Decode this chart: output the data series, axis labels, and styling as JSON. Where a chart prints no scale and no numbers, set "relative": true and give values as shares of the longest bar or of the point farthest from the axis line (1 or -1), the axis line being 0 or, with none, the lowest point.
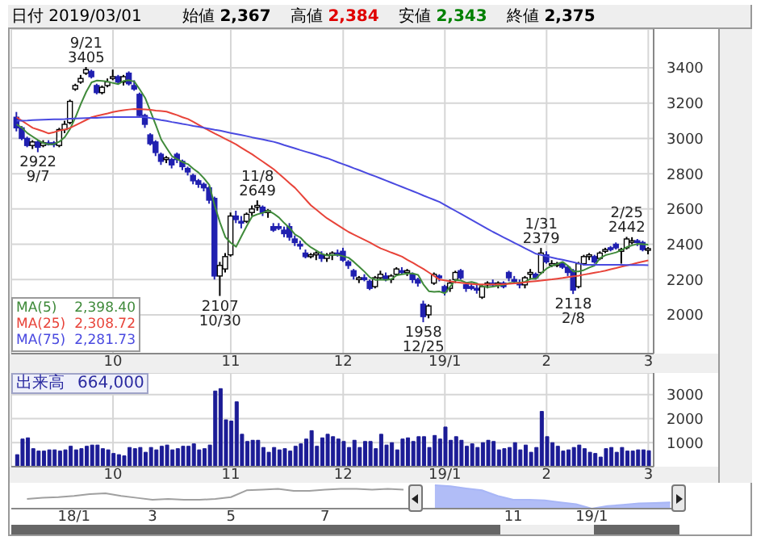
{
  "chart_data": [
    {
      "type": "candlestick",
      "title": "日付 2019/03/01",
      "annotations": [
        "始値 2,367",
        "高値 2,384",
        "安値 2,343",
        "終値 2,375",
        {
          "text": "9/21 3405",
          "y": 3405
        },
        {
          "text": "2922 9/7",
          "y": 2922
        },
        {
          "text": "11/8 2649",
          "y": 2649
        },
        {
          "text": "2107 10/30",
          "y": 2107
        },
        {
          "text": "1958 12/25",
          "y": 1958
        },
        {
          "text": "1/31 2379",
          "y": 2379
        },
        {
          "text": "2118 2/8",
          "y": 2118
        },
        {
          "text": "2/25 2442",
          "y": 2442
        }
      ],
      "categories": [
        null,
        null,
        null,
        null,
        null,
        null,
        null,
        null,
        null,
        null,
        null,
        null,
        null,
        null,
        null,
        null,
        null,
        null,
        "10",
        null,
        null,
        null,
        null,
        null,
        null,
        null,
        null,
        null,
        null,
        null,
        null,
        null,
        null,
        null,
        null,
        null,
        null,
        null,
        null,
        null,
        "11",
        null,
        null,
        null,
        null,
        null,
        null,
        null,
        null,
        null,
        null,
        null,
        null,
        null,
        null,
        null,
        null,
        null,
        null,
        null,
        null,
        "12",
        null,
        null,
        null,
        null,
        null,
        null,
        null,
        null,
        null,
        null,
        null,
        null,
        null,
        null,
        null,
        null,
        null,
        null,
        "19/1",
        null,
        null,
        null,
        null,
        null,
        null,
        null,
        null,
        null,
        null,
        null,
        null,
        null,
        null,
        null,
        null,
        null,
        null,
        "2",
        null,
        null,
        null,
        null,
        null,
        null,
        null,
        null,
        null,
        null,
        null,
        null,
        null,
        null,
        null,
        null,
        null,
        null,
        "3"
      ],
      "ohlc": [
        [
          3120,
          3150,
          3040,
          3060
        ],
        [
          3060,
          3070,
          2990,
          3000
        ],
        [
          3000,
          3010,
          2950,
          2960
        ],
        [
          2960,
          2990,
          2940,
          2980
        ],
        [
          2980,
          2990,
          2922,
          2950
        ],
        [
          2960,
          2990,
          2950,
          2975
        ],
        [
          2975,
          2990,
          2960,
          2970
        ],
        [
          2975,
          2985,
          2950,
          2965
        ],
        [
          2960,
          3060,
          2950,
          3050
        ],
        [
          3050,
          3100,
          3030,
          3080
        ],
        [
          3090,
          3220,
          3080,
          3210
        ],
        [
          3280,
          3310,
          3270,
          3300
        ],
        [
          3320,
          3360,
          3310,
          3340
        ],
        [
          3370,
          3405,
          3360,
          3390
        ],
        [
          3380,
          3390,
          3340,
          3350
        ],
        [
          3300,
          3310,
          3250,
          3260
        ],
        [
          3260,
          3300,
          3250,
          3290
        ],
        [
          3300,
          3340,
          3290,
          3320
        ],
        [
          3340,
          3390,
          3330,
          3350
        ],
        [
          3350,
          3360,
          3310,
          3320
        ],
        [
          3320,
          3360,
          3300,
          3350
        ],
        [
          3370,
          3380,
          3300,
          3310
        ],
        [
          3300,
          3330,
          3270,
          3280
        ],
        [
          3250,
          3260,
          3120,
          3130
        ],
        [
          3130,
          3140,
          3060,
          3080
        ],
        [
          3020,
          3030,
          2960,
          2970
        ],
        [
          2980,
          2990,
          2900,
          2920
        ],
        [
          2910,
          2920,
          2850,
          2870
        ],
        [
          2880,
          2900,
          2860,
          2890
        ],
        [
          2880,
          2890,
          2830,
          2850
        ],
        [
          2910,
          2920,
          2860,
          2880
        ],
        [
          2870,
          2880,
          2820,
          2840
        ],
        [
          2830,
          2840,
          2790,
          2810
        ],
        [
          2790,
          2800,
          2740,
          2760
        ],
        [
          2760,
          2770,
          2720,
          2740
        ],
        [
          2740,
          2750,
          2700,
          2720
        ],
        [
          2720,
          2730,
          2630,
          2650
        ],
        [
          2660,
          2670,
          2200,
          2220
        ],
        [
          2220,
          2300,
          2107,
          2280
        ],
        [
          2260,
          2350,
          2240,
          2330
        ],
        [
          2340,
          2580,
          2330,
          2560
        ],
        [
          2560,
          2590,
          2520,
          2540
        ],
        [
          2530,
          2560,
          2490,
          2520
        ],
        [
          2530,
          2580,
          2520,
          2570
        ],
        [
          2580,
          2620,
          2560,
          2600
        ],
        [
          2610,
          2649,
          2590,
          2620
        ],
        [
          2610,
          2620,
          2560,
          2580
        ],
        [
          2580,
          2600,
          2550,
          2590
        ],
        [
          2500,
          2520,
          2470,
          2480
        ],
        [
          2500,
          2520,
          2480,
          2490
        ],
        [
          2480,
          2500,
          2440,
          2460
        ],
        [
          2500,
          2520,
          2420,
          2440
        ],
        [
          2430,
          2450,
          2390,
          2410
        ],
        [
          2400,
          2420,
          2370,
          2390
        ],
        [
          2350,
          2370,
          2320,
          2330
        ],
        [
          2330,
          2350,
          2320,
          2340
        ],
        [
          2340,
          2360,
          2310,
          2350
        ],
        [
          2340,
          2360,
          2300,
          2320
        ],
        [
          2320,
          2350,
          2300,
          2340
        ],
        [
          2340,
          2360,
          2310,
          2350
        ],
        [
          2350,
          2370,
          2330,
          2340
        ],
        [
          2360,
          2380,
          2300,
          2310
        ],
        [
          2300,
          2310,
          2260,
          2280
        ],
        [
          2250,
          2260,
          2200,
          2220
        ],
        [
          2200,
          2220,
          2180,
          2210
        ],
        [
          2210,
          2230,
          2190,
          2200
        ],
        [
          2190,
          2200,
          2140,
          2150
        ],
        [
          2160,
          2220,
          2150,
          2210
        ],
        [
          2210,
          2250,
          2200,
          2230
        ],
        [
          2220,
          2240,
          2190,
          2200
        ],
        [
          2200,
          2230,
          2180,
          2220
        ],
        [
          2230,
          2270,
          2220,
          2260
        ],
        [
          2250,
          2270,
          2230,
          2240
        ],
        [
          2240,
          2260,
          2220,
          2250
        ],
        [
          2230,
          2240,
          2180,
          2200
        ],
        [
          2200,
          2210,
          2160,
          2180
        ],
        [
          2060,
          2080,
          1958,
          1990
        ],
        [
          2000,
          2060,
          1980,
          2050
        ],
        [
          2180,
          2240,
          2170,
          2230
        ],
        [
          2220,
          2230,
          2190,
          2210
        ],
        [
          2160,
          2170,
          2110,
          2130
        ],
        [
          2150,
          2200,
          2130,
          2180
        ],
        [
          2200,
          2250,
          2180,
          2240
        ],
        [
          2250,
          2260,
          2200,
          2210
        ],
        [
          2170,
          2180,
          2130,
          2150
        ],
        [
          2160,
          2180,
          2140,
          2150
        ],
        [
          2150,
          2170,
          2120,
          2140
        ],
        [
          2100,
          2170,
          2090,
          2160
        ],
        [
          2170,
          2190,
          2150,
          2180
        ],
        [
          2180,
          2200,
          2160,
          2170
        ],
        [
          2170,
          2190,
          2150,
          2180
        ],
        [
          2180,
          2190,
          2150,
          2160
        ],
        [
          2240,
          2250,
          2190,
          2210
        ],
        [
          2200,
          2220,
          2180,
          2190
        ],
        [
          2180,
          2200,
          2150,
          2170
        ],
        [
          2170,
          2220,
          2150,
          2210
        ],
        [
          2230,
          2260,
          2200,
          2240
        ],
        [
          2230,
          2240,
          2200,
          2210
        ],
        [
          2240,
          2379,
          2230,
          2350
        ],
        [
          2340,
          2360,
          2290,
          2300
        ],
        [
          2290,
          2310,
          2270,
          2290
        ],
        [
          2280,
          2300,
          2270,
          2290
        ],
        [
          2290,
          2300,
          2260,
          2270
        ],
        [
          2270,
          2280,
          2220,
          2240
        ],
        [
          2250,
          2260,
          2118,
          2140
        ],
        [
          2160,
          2300,
          2150,
          2290
        ],
        [
          2290,
          2340,
          2280,
          2330
        ],
        [
          2330,
          2350,
          2310,
          2340
        ],
        [
          2330,
          2340,
          2290,
          2300
        ],
        [
          2320,
          2360,
          2310,
          2350
        ],
        [
          2360,
          2380,
          2350,
          2370
        ],
        [
          2380,
          2390,
          2360,
          2370
        ],
        [
          2400,
          2410,
          2370,
          2380
        ],
        [
          2360,
          2380,
          2290,
          2370
        ],
        [
          2380,
          2442,
          2370,
          2430
        ],
        [
          2420,
          2440,
          2400,
          2420
        ],
        [
          2420,
          2430,
          2390,
          2410
        ],
        [
          2410,
          2420,
          2360,
          2370
        ],
        [
          2367,
          2384,
          2343,
          2375
        ]
      ],
      "colors": [
        "#2020b0",
        "#2020b0",
        "#2020b0",
        "#ffffff",
        "#2020b0",
        "#ffffff",
        "#2020b0",
        "#2020b0",
        "#ffffff",
        "#ffffff",
        "#ffffff",
        "#ffffff",
        "#ffffff",
        "#ffffff",
        "#2020b0",
        "#2020b0",
        "#ffffff",
        "#ffffff",
        "#ffffff",
        "#2020b0",
        "#ffffff",
        "#2020b0",
        "#2020b0",
        "#2020b0",
        "#2020b0",
        "#2020b0",
        "#2020b0",
        "#2020b0",
        "#ffffff",
        "#2020b0",
        "#2020b0",
        "#2020b0",
        "#2020b0",
        "#2020b0",
        "#2020b0",
        "#2020b0",
        "#2020b0",
        "#2020b0",
        "#ffffff",
        "#ffffff",
        "#ffffff",
        "#2020b0",
        "#2020b0",
        "#ffffff",
        "#ffffff",
        "#ffffff",
        "#2020b0",
        "#ffffff",
        "#2020b0",
        "#2020b0",
        "#2020b0",
        "#2020b0",
        "#2020b0",
        "#2020b0",
        "#2020b0",
        "#ffffff",
        "#ffffff",
        "#2020b0",
        "#ffffff",
        "#ffffff",
        "#2020b0",
        "#2020b0",
        "#2020b0",
        "#2020b0",
        "#ffffff",
        "#2020b0",
        "#2020b0",
        "#ffffff",
        "#ffffff",
        "#2020b0",
        "#ffffff",
        "#ffffff",
        "#2020b0",
        "#ffffff",
        "#2020b0",
        "#2020b0",
        "#2020b0",
        "#ffffff",
        "#ffffff",
        "#2020b0",
        "#2020b0",
        "#ffffff",
        "#ffffff",
        "#2020b0",
        "#2020b0",
        "#2020b0",
        "#2020b0",
        "#ffffff",
        "#ffffff",
        "#2020b0",
        "#ffffff",
        "#2020b0",
        "#2020b0",
        "#2020b0",
        "#2020b0",
        "#ffffff",
        "#ffffff",
        "#2020b0",
        "#ffffff",
        "#2020b0",
        "#ffffff",
        "#ffffff",
        "#2020b0",
        "#2020b0",
        "#2020b0",
        "#ffffff",
        "#ffffff",
        "#ffffff",
        "#2020b0",
        "#ffffff",
        "#ffffff",
        "#2020b0",
        "#2020b0",
        "#ffffff",
        "#ffffff",
        "#ffffff",
        "#2020b0",
        "#2020b0",
        "#ffffff"
      ],
      "series": [
        {
          "type": "line",
          "name": "MA(5) 2,398.40",
          "color": "#3f8a3a",
          "values": [
            3080,
            3060,
            3030,
            3010,
            2990,
            2973,
            2967,
            2968,
            2982,
            3008,
            3055,
            3121,
            3196,
            3264,
            3318,
            3328,
            3326,
            3322,
            3314,
            3308,
            3326,
            3330,
            3322,
            3278,
            3230,
            3154,
            3076,
            2994,
            2946,
            2900,
            2882,
            2866,
            2854,
            2828,
            2806,
            2774,
            2736,
            2618,
            2522,
            2440,
            2408,
            2386,
            2446,
            2504,
            2558,
            2570,
            2578,
            2592,
            2574,
            2552,
            2520,
            2492,
            2456,
            2438,
            2406,
            2382,
            2364,
            2346,
            2336,
            2340,
            2340,
            2332,
            2324,
            2300,
            2272,
            2244,
            2212,
            2198,
            2200,
            2198,
            2202,
            2224,
            2230,
            2234,
            2234,
            2226,
            2172,
            2134,
            2130,
            2132,
            2122,
            2160,
            2198,
            2194,
            2182,
            2186,
            2178,
            2162,
            2156,
            2160,
            2166,
            2170,
            2180,
            2182,
            2182,
            2188,
            2204,
            2204,
            2236,
            2262,
            2278,
            2288,
            2300,
            2278,
            2246,
            2246,
            2254,
            2268,
            2280,
            2322,
            2338,
            2346,
            2354,
            2368,
            2384,
            2394,
            2402,
            2400,
            2398.4
          ]
        },
        {
          "type": "line",
          "name": "MA(25) 2,308.72",
          "color": "#e8443a",
          "values": [
            3120,
            3100,
            3080,
            3060,
            3050,
            3040,
            3028,
            3035,
            3045,
            3050,
            3060,
            3075,
            3090,
            3105,
            3120,
            3128,
            3135,
            3142,
            3150,
            3155,
            3160,
            3164,
            3167,
            3166,
            3165,
            3162,
            3158,
            3155,
            3152,
            3142,
            3132,
            3120,
            3110,
            3094,
            3077,
            3060,
            3044,
            3028,
            3013,
            2997,
            2982,
            2966,
            2947,
            2928,
            2910,
            2889,
            2868,
            2847,
            2826,
            2800,
            2773,
            2746,
            2720,
            2687,
            2653,
            2620,
            2596,
            2571,
            2547,
            2528,
            2508,
            2489,
            2470,
            2455,
            2440,
            2425,
            2410,
            2393,
            2377,
            2365,
            2353,
            2342,
            2330,
            2312,
            2295,
            2277,
            2260,
            2240,
            2220,
            2200,
            2195,
            2190,
            2185,
            2182,
            2178,
            2175,
            2172,
            2172,
            2172,
            2172,
            2172,
            2174,
            2176,
            2178,
            2180,
            2184,
            2188,
            2191,
            2194,
            2198,
            2201,
            2205,
            2209,
            2214,
            2218,
            2222,
            2228,
            2233,
            2239,
            2244,
            2250,
            2258,
            2265,
            2273,
            2280,
            2287,
            2295,
            2302,
            2308.72
          ]
        },
        {
          "type": "line",
          "name": "MA(75) 2,281.73",
          "color": "#4a4ae0",
          "values": [
            3100,
            3101,
            3102,
            3104,
            3105,
            3106,
            3107,
            3108,
            3109,
            3110,
            3112,
            3113,
            3114,
            3115,
            3116,
            3117,
            3119,
            3120,
            3121,
            3121,
            3121,
            3121,
            3121,
            3121,
            3121,
            3115,
            3110,
            3104,
            3099,
            3093,
            3088,
            3082,
            3077,
            3071,
            3066,
            3060,
            3055,
            3049,
            3044,
            3038,
            3031,
            3025,
            3019,
            3013,
            3006,
            3000,
            2994,
            2987,
            2981,
            2972,
            2962,
            2953,
            2944,
            2934,
            2925,
            2916,
            2907,
            2897,
            2888,
            2877,
            2865,
            2854,
            2843,
            2831,
            2820,
            2808,
            2796,
            2785,
            2773,
            2761,
            2749,
            2737,
            2725,
            2713,
            2701,
            2689,
            2676,
            2664,
            2652,
            2640,
            2623,
            2606,
            2589,
            2572,
            2555,
            2538,
            2521,
            2504,
            2487,
            2470,
            2455,
            2439,
            2424,
            2408,
            2393,
            2377,
            2362,
            2346,
            2339,
            2332,
            2325,
            2318,
            2312,
            2305,
            2298,
            2291,
            2284,
            2284,
            2284,
            2284,
            2283,
            2283,
            2283,
            2283,
            2282,
            2282,
            2282,
            2282,
            2281.73
          ]
        }
      ],
      "ylim": [
        1780,
        3620
      ],
      "yticks": [
        2000,
        2200,
        2400,
        2600,
        2800,
        3000,
        3200,
        3400
      ],
      "grid": true,
      "legend": "bottom left"
    },
    {
      "type": "bar",
      "title": "出来高 664,000",
      "categories": [
        null,
        null,
        null,
        null,
        null,
        null,
        null,
        null,
        null,
        null,
        null,
        null,
        null,
        null,
        null,
        null,
        null,
        null,
        "10",
        null,
        null,
        null,
        null,
        null,
        null,
        null,
        null,
        null,
        null,
        null,
        null,
        null,
        null,
        null,
        null,
        null,
        null,
        null,
        null,
        null,
        "11",
        null,
        null,
        null,
        null,
        null,
        null,
        null,
        null,
        null,
        null,
        null,
        null,
        null,
        null,
        null,
        null,
        null,
        null,
        null,
        null,
        "12",
        null,
        null,
        null,
        null,
        null,
        null,
        null,
        null,
        null,
        null,
        null,
        null,
        null,
        null,
        null,
        null,
        null,
        null,
        "19/1",
        null,
        null,
        null,
        null,
        null,
        null,
        null,
        null,
        null,
        null,
        null,
        null,
        null,
        null,
        null,
        null,
        null,
        null,
        "2",
        null,
        null,
        null,
        null,
        null,
        null,
        null,
        null,
        null,
        null,
        null,
        null,
        null,
        null,
        null,
        null,
        null,
        null,
        "3"
      ],
      "values": [
        500,
        1150,
        1200,
        750,
        650,
        650,
        700,
        700,
        650,
        700,
        850,
        700,
        750,
        850,
        900,
        900,
        750,
        700,
        550,
        500,
        450,
        800,
        750,
        800,
        600,
        800,
        700,
        850,
        900,
        700,
        750,
        850,
        850,
        950,
        700,
        750,
        900,
        3150,
        3250,
        1950,
        1900,
        2700,
        1350,
        1050,
        1100,
        1100,
        800,
        600,
        800,
        700,
        750,
        650,
        850,
        950,
        1150,
        1500,
        850,
        1200,
        1350,
        1250,
        1150,
        1050,
        800,
        1100,
        800,
        1050,
        1050,
        750,
        1350,
        900,
        1000,
        700,
        1150,
        1200,
        1050,
        1250,
        1250,
        800,
        1300,
        1150,
        1650,
        1100,
        1250,
        1100,
        850,
        950,
        800,
        1000,
        1100,
        1050,
        700,
        750,
        800,
        1000,
        700,
        900,
        600,
        800,
        2300,
        1250,
        1000,
        850,
        650,
        700,
        800,
        900,
        750,
        600,
        550,
        400,
        750,
        800,
        600,
        800,
        650,
        650,
        700,
        700,
        664
      ],
      "color": "#1c1c96",
      "ylim": [
        0,
        3900
      ],
      "yticks": [
        1000,
        2000,
        3000
      ],
      "grid": true
    },
    {
      "type": "line",
      "relative": true,
      "tick_labels": "x",
      "categories": [
        null,
        null,
        null,
        "18/1",
        null,
        null,
        null,
        null,
        "3",
        null,
        null,
        null,
        null,
        "5",
        null,
        null,
        null,
        null,
        null,
        "7",
        null,
        null,
        null,
        null,
        null,
        null,
        null,
        null,
        null,
        null,
        null,
        "11",
        null,
        null,
        null,
        null,
        "19/1",
        null,
        null,
        null,
        null,
        null
      ],
      "series": [
        {
          "type": "line",
          "color": "#a0a0a0",
          "values": [
            0.41,
            0.46,
            0.49,
            0.54,
            0.62,
            0.65,
            0.54,
            0.46,
            0.38,
            0.41,
            0.38,
            0.38,
            0.41,
            0.49,
            0.78,
            0.81,
            0.84,
            0.76,
            0.76,
            0.81,
            0.84,
            0.84,
            0.81,
            0.84,
            0.81,
            null,
            null,
            null,
            null,
            null,
            null,
            null,
            null,
            null,
            null,
            null,
            null,
            null,
            null,
            null,
            null,
            null
          ]
        },
        {
          "type": "area",
          "color": "#a8b6f6",
          "values": [
            null,
            null,
            null,
            null,
            null,
            null,
            null,
            null,
            null,
            null,
            null,
            null,
            null,
            null,
            null,
            null,
            null,
            null,
            null,
            null,
            null,
            null,
            null,
            null,
            null,
            null,
            1,
            0.95,
            0.86,
            0.78,
            0.54,
            0.38,
            0.38,
            0.35,
            0.27,
            0.19,
            0,
            0.11,
            0.16,
            0.22,
            0.24,
            0.27
          ]
        }
      ]
    }
  ]
}
